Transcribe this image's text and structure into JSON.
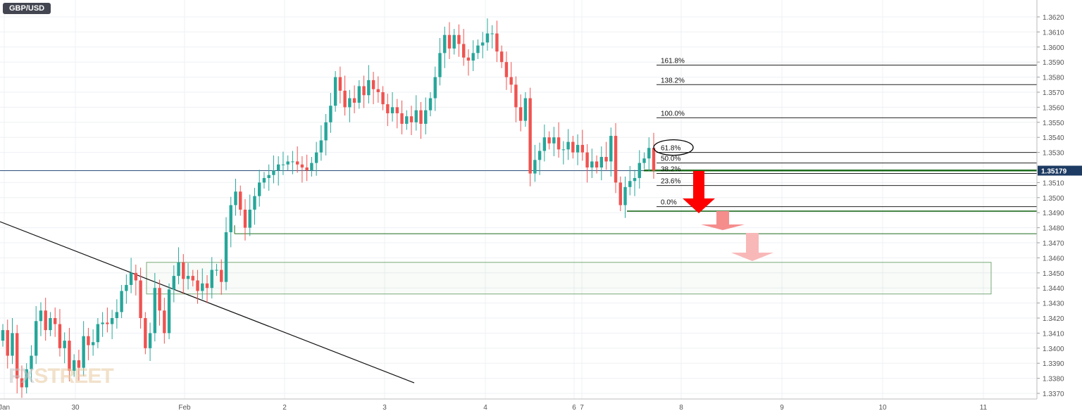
{
  "symbol": "GBP/USD",
  "watermark": {
    "part1": "FX",
    "part2": "STREET"
  },
  "colors": {
    "up": "#26a69a",
    "down": "#ef5350",
    "grid": "#eef0f4",
    "axis_text": "#555555",
    "price_line": "#2f4f7a",
    "price_label_bg": "#1d3b63",
    "fib_line": "#222222",
    "level_green": "#1e6b1e",
    "arrow_red": "#ff0000",
    "arrow_light": "#f58d8d",
    "arrow_lighter": "#f9b8b8",
    "zone": "#7aa87a"
  },
  "chart_data": {
    "type": "candlestick",
    "title": "",
    "ylim": [
      1.3366,
      1.3628
    ],
    "price_ticks": [
      "1.3620",
      "1.3610",
      "1.3600",
      "1.3590",
      "1.3580",
      "1.3570",
      "1.3560",
      "1.3550",
      "1.3540",
      "1.3530",
      "1.3510",
      "1.3500",
      "1.3490",
      "1.3480",
      "1.3470",
      "1.3460",
      "1.3450",
      "1.3440",
      "1.3430",
      "1.3420",
      "1.3410",
      "1.3400",
      "1.3390",
      "1.3380",
      "1.3370"
    ],
    "time_labels": [
      "Jan",
      "30",
      "Feb",
      "2",
      "3",
      "4",
      "6",
      "7",
      "8",
      "9",
      "10",
      "11"
    ],
    "current_price": {
      "value": 1.35179,
      "label": "1.35179"
    },
    "fibonacci_levels": [
      {
        "label": "161.8%",
        "price": 1.3588
      },
      {
        "label": "138.2%",
        "price": 1.3575
      },
      {
        "label": "100.0%",
        "price": 1.3553
      },
      {
        "label": "61.8%",
        "price": 1.353,
        "circled": true
      },
      {
        "label": "50.0%",
        "price": 1.3523
      },
      {
        "label": "38.2%",
        "price": 1.3516
      },
      {
        "label": "23.6%",
        "price": 1.3508
      },
      {
        "label": "0.0%",
        "price": 1.3494
      }
    ],
    "support_levels": [
      {
        "price": 1.3518
      },
      {
        "price": 1.3491
      },
      {
        "price": 1.3476
      }
    ],
    "demand_zone": {
      "top": 1.3457,
      "bottom": 1.3436
    },
    "trendline": {
      "from_price": 1.3484,
      "to_price": 1.3377
    },
    "candles": {
      "open": 1.3405,
      "closes": [
        1.3412,
        1.3395,
        1.341,
        1.338,
        1.3374,
        1.3386,
        1.3395,
        1.3418,
        1.3425,
        1.3412,
        1.342,
        1.3416,
        1.34,
        1.3405,
        1.3385,
        1.3392,
        1.3387,
        1.3408,
        1.3402,
        1.3404,
        1.3416,
        1.3417,
        1.3416,
        1.342,
        1.3424,
        1.3438,
        1.3442,
        1.345,
        1.3445,
        1.342,
        1.34,
        1.341,
        1.344,
        1.3425,
        1.341,
        1.3439,
        1.3448,
        1.3457,
        1.3446,
        1.3448,
        1.3445,
        1.3438,
        1.3443,
        1.344,
        1.3452,
        1.3452,
        1.3444,
        1.3477,
        1.3495,
        1.3504,
        1.3492,
        1.348,
        1.3492,
        1.3501,
        1.351,
        1.3513,
        1.3515,
        1.3518,
        1.3522,
        1.3522,
        1.3524,
        1.3524,
        1.3522,
        1.352,
        1.3518,
        1.3523,
        1.353,
        1.3538,
        1.355,
        1.3561,
        1.358,
        1.3571,
        1.356,
        1.3566,
        1.3563,
        1.3574,
        1.3568,
        1.3578,
        1.3572,
        1.357,
        1.3562,
        1.3556,
        1.356,
        1.3556,
        1.3549,
        1.3554,
        1.355,
        1.3558,
        1.3549,
        1.3558,
        1.3566,
        1.358,
        1.3596,
        1.3608,
        1.3599,
        1.3608,
        1.3602,
        1.3593,
        1.3591,
        1.3596,
        1.3601,
        1.3603,
        1.3609,
        1.3609,
        1.3597,
        1.359,
        1.358,
        1.3575,
        1.356,
        1.3551,
        1.3566,
        1.3516,
        1.3525,
        1.3531,
        1.354,
        1.3536,
        1.354,
        1.3532,
        1.3532,
        1.3537,
        1.353,
        1.3535,
        1.353,
        1.352,
        1.3524,
        1.352,
        1.3527,
        1.3524,
        1.3541,
        1.351,
        1.3495,
        1.3507,
        1.3511,
        1.3513,
        1.3523,
        1.3526,
        1.3533,
        1.3518
      ]
    }
  }
}
